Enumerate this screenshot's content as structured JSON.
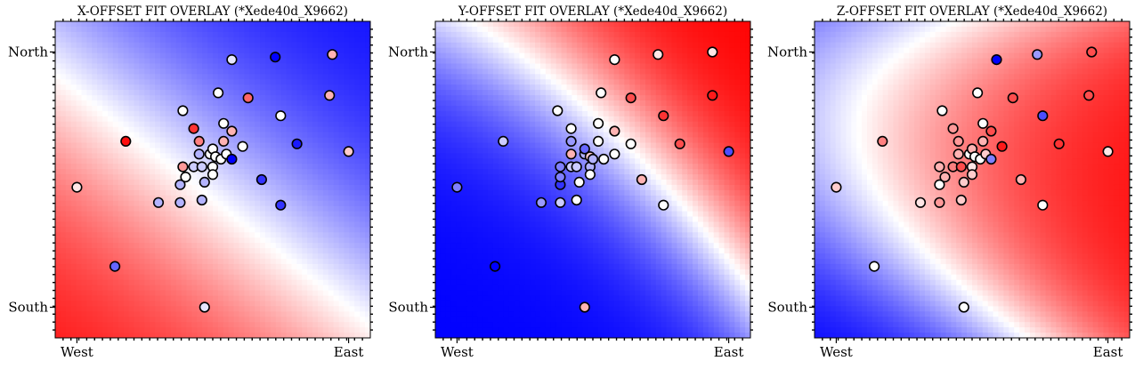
{
  "chart_data": [
    {
      "type": "heatmap",
      "title": "X-OFFSET FIT OVERLAY (*Xede40d_X9662)",
      "x_ticks": [
        "West",
        "East"
      ],
      "y_ticks": [
        "North",
        "South"
      ],
      "xlim": [
        -0.08,
        1.08
      ],
      "ylim": [
        -0.12,
        1.12
      ],
      "colormap": [
        "#0000ff",
        "#ffffff",
        "#ff0000"
      ],
      "field": {
        "kind": "plane",
        "a": -1.1,
        "b": -1.3,
        "c": 1.1
      },
      "points": [
        {
          "x": 0.0,
          "y": 0.47,
          "v": 0.1
        },
        {
          "x": 0.18,
          "y": 0.65,
          "v": 0.95
        },
        {
          "x": 0.14,
          "y": 0.16,
          "v": -0.6
        },
        {
          "x": 0.3,
          "y": 0.41,
          "v": -0.3
        },
        {
          "x": 0.38,
          "y": 0.41,
          "v": -0.3
        },
        {
          "x": 0.38,
          "y": 0.48,
          "v": -0.3
        },
        {
          "x": 0.39,
          "y": 0.55,
          "v": 0.4
        },
        {
          "x": 0.39,
          "y": 0.77,
          "v": 0.0
        },
        {
          "x": 0.4,
          "y": 0.51,
          "v": 0.0
        },
        {
          "x": 0.43,
          "y": 0.55,
          "v": -0.2
        },
        {
          "x": 0.43,
          "y": 0.7,
          "v": 0.8
        },
        {
          "x": 0.45,
          "y": 0.65,
          "v": 0.5
        },
        {
          "x": 0.45,
          "y": 0.6,
          "v": -0.3
        },
        {
          "x": 0.46,
          "y": 0.55,
          "v": -0.2
        },
        {
          "x": 0.46,
          "y": 0.42,
          "v": -0.3
        },
        {
          "x": 0.47,
          "y": 0.49,
          "v": -0.3
        },
        {
          "x": 0.47,
          "y": 0.0,
          "v": -0.1
        },
        {
          "x": 0.49,
          "y": 0.6,
          "v": 0.0
        },
        {
          "x": 0.5,
          "y": 0.62,
          "v": 0.0
        },
        {
          "x": 0.5,
          "y": 0.55,
          "v": 0.0
        },
        {
          "x": 0.5,
          "y": 0.52,
          "v": 0.0
        },
        {
          "x": 0.51,
          "y": 0.59,
          "v": 0.0
        },
        {
          "x": 0.52,
          "y": 0.84,
          "v": 0.0
        },
        {
          "x": 0.53,
          "y": 0.58,
          "v": 0.0
        },
        {
          "x": 0.54,
          "y": 0.65,
          "v": 0.3
        },
        {
          "x": 0.54,
          "y": 0.72,
          "v": 0.0
        },
        {
          "x": 0.55,
          "y": 0.6,
          "v": 0.0
        },
        {
          "x": 0.57,
          "y": 0.69,
          "v": 0.3
        },
        {
          "x": 0.57,
          "y": 0.58,
          "v": -1.0
        },
        {
          "x": 0.57,
          "y": 0.97,
          "v": -0.1
        },
        {
          "x": 0.61,
          "y": 0.63,
          "v": 0.0
        },
        {
          "x": 0.63,
          "y": 0.82,
          "v": 0.6
        },
        {
          "x": 0.68,
          "y": 0.5,
          "v": -0.8
        },
        {
          "x": 0.73,
          "y": 0.98,
          "v": -1.0
        },
        {
          "x": 0.75,
          "y": 0.4,
          "v": -0.8
        },
        {
          "x": 0.75,
          "y": 0.75,
          "v": 0.0
        },
        {
          "x": 0.81,
          "y": 0.64,
          "v": -0.9
        },
        {
          "x": 0.93,
          "y": 0.83,
          "v": 0.3
        },
        {
          "x": 0.94,
          "y": 0.99,
          "v": 0.3
        },
        {
          "x": 1.0,
          "y": 0.61,
          "v": 0.2
        }
      ]
    },
    {
      "type": "heatmap",
      "title": "Y-OFFSET FIT OVERLAY (*Xede40d_X9662)",
      "x_ticks": [
        "West",
        "East"
      ],
      "y_ticks": [
        "North",
        "South"
      ],
      "xlim": [
        -0.08,
        1.08
      ],
      "ylim": [
        -0.12,
        1.12
      ],
      "colormap": [
        "#0000ff",
        "#ffffff",
        "#ff0000"
      ],
      "field": {
        "kind": "curved",
        "a": 1.3,
        "b": 1.3,
        "q": 1.9,
        "x0": 0.6,
        "y0": 0.7
      },
      "points": [
        {
          "x": 0.0,
          "y": 0.47,
          "v": -0.5
        },
        {
          "x": 0.17,
          "y": 0.65,
          "v": -0.2
        },
        {
          "x": 0.14,
          "y": 0.16,
          "v": -1.0
        },
        {
          "x": 0.31,
          "y": 0.41,
          "v": -0.4
        },
        {
          "x": 0.38,
          "y": 0.41,
          "v": -0.2
        },
        {
          "x": 0.38,
          "y": 0.48,
          "v": -0.8
        },
        {
          "x": 0.38,
          "y": 0.55,
          "v": -0.5
        },
        {
          "x": 0.37,
          "y": 0.77,
          "v": 0.0
        },
        {
          "x": 0.38,
          "y": 0.51,
          "v": -0.5
        },
        {
          "x": 0.42,
          "y": 0.55,
          "v": -0.2
        },
        {
          "x": 0.42,
          "y": 0.7,
          "v": 0.0
        },
        {
          "x": 0.42,
          "y": 0.65,
          "v": -0.4
        },
        {
          "x": 0.42,
          "y": 0.6,
          "v": 0.3
        },
        {
          "x": 0.44,
          "y": 0.55,
          "v": -0.2
        },
        {
          "x": 0.44,
          "y": 0.42,
          "v": 0.0
        },
        {
          "x": 0.45,
          "y": 0.49,
          "v": 0.0
        },
        {
          "x": 0.47,
          "y": 0.0,
          "v": 0.3
        },
        {
          "x": 0.47,
          "y": 0.6,
          "v": -0.3
        },
        {
          "x": 0.47,
          "y": 0.62,
          "v": -0.6
        },
        {
          "x": 0.49,
          "y": 0.55,
          "v": -0.3
        },
        {
          "x": 0.49,
          "y": 0.52,
          "v": 0.0
        },
        {
          "x": 0.49,
          "y": 0.59,
          "v": 0.2
        },
        {
          "x": 0.53,
          "y": 0.84,
          "v": 0.0
        },
        {
          "x": 0.5,
          "y": 0.58,
          "v": -0.3
        },
        {
          "x": 0.52,
          "y": 0.65,
          "v": 0.0
        },
        {
          "x": 0.52,
          "y": 0.72,
          "v": 0.0
        },
        {
          "x": 0.54,
          "y": 0.58,
          "v": 0.0
        },
        {
          "x": 0.58,
          "y": 0.69,
          "v": 0.3
        },
        {
          "x": 0.58,
          "y": 0.6,
          "v": 0.0
        },
        {
          "x": 0.58,
          "y": 0.97,
          "v": 0.0
        },
        {
          "x": 0.64,
          "y": 0.64,
          "v": 0.0
        },
        {
          "x": 0.64,
          "y": 0.82,
          "v": 0.7
        },
        {
          "x": 0.68,
          "y": 0.5,
          "v": 0.3
        },
        {
          "x": 0.74,
          "y": 0.99,
          "v": 0.1
        },
        {
          "x": 0.76,
          "y": 0.4,
          "v": 0.0
        },
        {
          "x": 0.76,
          "y": 0.75,
          "v": 0.8
        },
        {
          "x": 0.82,
          "y": 0.64,
          "v": 0.7
        },
        {
          "x": 0.94,
          "y": 0.83,
          "v": 0.9
        },
        {
          "x": 0.94,
          "y": 1.0,
          "v": 0.1
        },
        {
          "x": 1.0,
          "y": 0.61,
          "v": -0.7
        }
      ]
    },
    {
      "type": "heatmap",
      "title": "Z-OFFSET FIT OVERLAY (*Xede40d_X9662)",
      "x_ticks": [
        "West",
        "East"
      ],
      "y_ticks": [
        "North",
        "South"
      ],
      "xlim": [
        -0.08,
        1.08
      ],
      "ylim": [
        -0.12,
        1.12
      ],
      "colormap": [
        "#0000ff",
        "#ffffff",
        "#ff0000"
      ],
      "field": {
        "kind": "saddle",
        "a": 1.2,
        "b": -2.0,
        "c": 1.2,
        "x0": 0.2,
        "y0": 0.6
      },
      "points": [
        {
          "x": 0.0,
          "y": 0.47,
          "v": 0.2
        },
        {
          "x": 0.17,
          "y": 0.65,
          "v": 0.5
        },
        {
          "x": 0.14,
          "y": 0.16,
          "v": 0.0
        },
        {
          "x": 0.31,
          "y": 0.41,
          "v": 0.1
        },
        {
          "x": 0.38,
          "y": 0.41,
          "v": 0.4
        },
        {
          "x": 0.38,
          "y": 0.48,
          "v": 0.0
        },
        {
          "x": 0.38,
          "y": 0.55,
          "v": 0.3
        },
        {
          "x": 0.39,
          "y": 0.77,
          "v": 0.0
        },
        {
          "x": 0.4,
          "y": 0.51,
          "v": 0.3
        },
        {
          "x": 0.43,
          "y": 0.55,
          "v": 0.5
        },
        {
          "x": 0.43,
          "y": 0.7,
          "v": 0.4
        },
        {
          "x": 0.45,
          "y": 0.65,
          "v": 0.4
        },
        {
          "x": 0.45,
          "y": 0.6,
          "v": 0.3
        },
        {
          "x": 0.46,
          "y": 0.55,
          "v": 0.7
        },
        {
          "x": 0.46,
          "y": 0.42,
          "v": 0.2
        },
        {
          "x": 0.47,
          "y": 0.49,
          "v": 0.2
        },
        {
          "x": 0.47,
          "y": 0.0,
          "v": 0.0
        },
        {
          "x": 0.49,
          "y": 0.6,
          "v": 0.0
        },
        {
          "x": 0.5,
          "y": 0.62,
          "v": 0.3
        },
        {
          "x": 0.5,
          "y": 0.55,
          "v": 0.1
        },
        {
          "x": 0.5,
          "y": 0.52,
          "v": 0.2
        },
        {
          "x": 0.51,
          "y": 0.59,
          "v": 0.0
        },
        {
          "x": 0.52,
          "y": 0.84,
          "v": 0.0
        },
        {
          "x": 0.53,
          "y": 0.58,
          "v": 0.0
        },
        {
          "x": 0.54,
          "y": 0.65,
          "v": 0.3
        },
        {
          "x": 0.54,
          "y": 0.72,
          "v": 0.0
        },
        {
          "x": 0.55,
          "y": 0.6,
          "v": 0.2
        },
        {
          "x": 0.57,
          "y": 0.69,
          "v": 0.7
        },
        {
          "x": 0.57,
          "y": 0.58,
          "v": -0.5
        },
        {
          "x": 0.59,
          "y": 0.97,
          "v": -1.0
        },
        {
          "x": 0.61,
          "y": 0.63,
          "v": 0.9
        },
        {
          "x": 0.65,
          "y": 0.82,
          "v": 0.7
        },
        {
          "x": 0.68,
          "y": 0.5,
          "v": 0.3
        },
        {
          "x": 0.74,
          "y": 0.99,
          "v": -0.4
        },
        {
          "x": 0.76,
          "y": 0.4,
          "v": 0.0
        },
        {
          "x": 0.76,
          "y": 0.75,
          "v": -0.7
        },
        {
          "x": 0.82,
          "y": 0.64,
          "v": 0.8
        },
        {
          "x": 0.93,
          "y": 0.83,
          "v": 0.7
        },
        {
          "x": 0.94,
          "y": 1.0,
          "v": 0.7
        },
        {
          "x": 1.0,
          "y": 0.61,
          "v": 0.1
        }
      ]
    }
  ]
}
